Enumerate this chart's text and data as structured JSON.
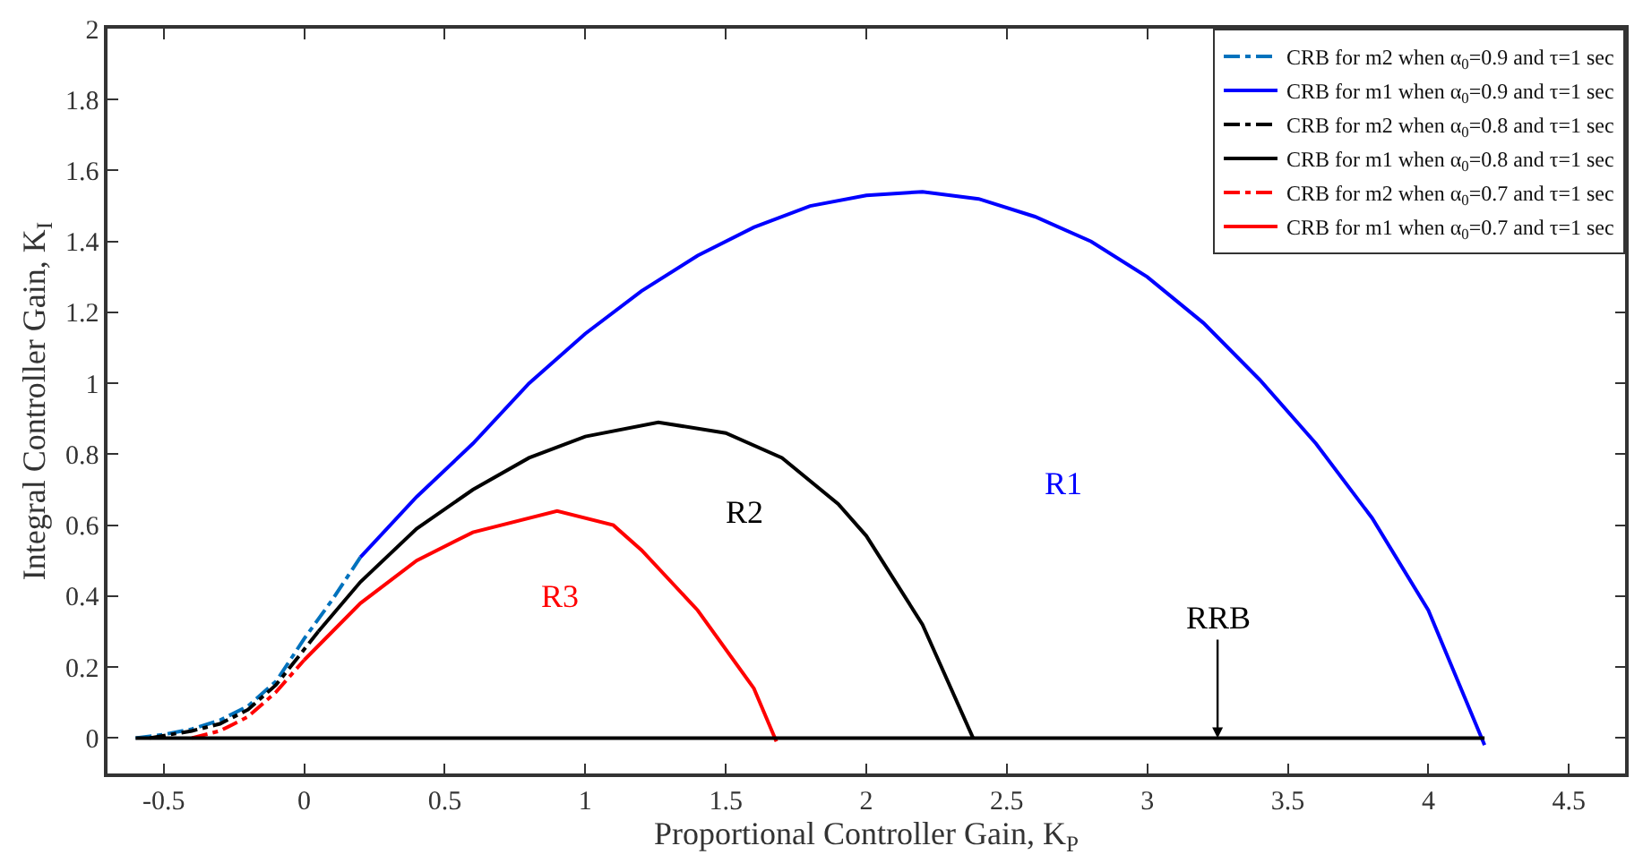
{
  "chart_data": {
    "type": "line",
    "xlabel": "Proportional Controller Gain, K$_{P}$",
    "ylabel": "Integral Controller Gain, K$_{I}$",
    "xlim": [
      -0.7,
      4.7
    ],
    "xticks": [
      -0.5,
      0,
      0.5,
      1,
      1.5,
      2,
      2.5,
      3,
      3.5,
      4,
      4.5
    ],
    "ylim": [
      -0.1,
      2
    ],
    "yticks": [
      0,
      0.2,
      0.4,
      0.6,
      0.8,
      1,
      1.2,
      1.4,
      1.6,
      1.8,
      2
    ],
    "legend": "top right",
    "marker": "none",
    "series": [
      {
        "name": "CRB for m2 when α$_{0}$=0.9 and τ=1 sec",
        "color": "#0072bd",
        "line_style": "dashed",
        "x": [
          -0.6,
          -0.5,
          -0.4,
          -0.3,
          -0.2,
          -0.1,
          0,
          0.1,
          0.2
        ],
        "values": [
          0,
          0.01,
          0.025,
          0.05,
          0.09,
          0.16,
          0.28,
          0.39,
          0.51
        ]
      },
      {
        "name": "CRB for m1 when α$_{0}$=0.9 and τ=1 sec",
        "color": "#0000ff",
        "line_style": "solid",
        "x": [
          0.2,
          0.4,
          0.6,
          0.8,
          1.0,
          1.2,
          1.4,
          1.6,
          1.8,
          2.0,
          2.2,
          2.4,
          2.6,
          2.8,
          3.0,
          3.2,
          3.4,
          3.6,
          3.8,
          4.0,
          4.2
        ],
        "values": [
          0.51,
          0.68,
          0.83,
          1.0,
          1.14,
          1.26,
          1.36,
          1.44,
          1.5,
          1.53,
          1.54,
          1.52,
          1.47,
          1.4,
          1.3,
          1.17,
          1.01,
          0.83,
          0.62,
          0.36,
          -0.02
        ]
      },
      {
        "name": "CRB for m2 when α$_{0}$=0.8 and τ=1 sec",
        "color": "#000000",
        "line_style": "dashed",
        "x": [
          -0.55,
          -0.4,
          -0.3,
          -0.2,
          -0.1,
          0,
          0.05
        ],
        "values": [
          0,
          0.02,
          0.04,
          0.08,
          0.15,
          0.25,
          0.3
        ]
      },
      {
        "name": "CRB for m1 when α$_{0}$=0.8 and τ=1 sec",
        "color": "#000000",
        "line_style": "solid",
        "x": [
          0.05,
          0.2,
          0.4,
          0.6,
          0.8,
          1.0,
          1.26,
          1.5,
          1.7,
          1.9,
          2.0,
          2.2,
          2.38
        ],
        "values": [
          0.3,
          0.44,
          0.59,
          0.7,
          0.79,
          0.85,
          0.89,
          0.86,
          0.79,
          0.66,
          0.57,
          0.32,
          0
        ]
      },
      {
        "name": "CRB for m2 when α$_{0}$=0.7 and τ=1 sec",
        "color": "#ff0000",
        "line_style": "dashed",
        "x": [
          -0.4,
          -0.3,
          -0.2,
          -0.1,
          0
        ],
        "values": [
          0,
          0.02,
          0.06,
          0.13,
          0.22
        ]
      },
      {
        "name": "CRB for m1 when α$_{0}$=0.7 and τ=1 sec",
        "color": "#ff0000",
        "line_style": "solid",
        "x": [
          0,
          0.2,
          0.4,
          0.6,
          0.9,
          1.1,
          1.2,
          1.4,
          1.6,
          1.68
        ],
        "values": [
          0.22,
          0.38,
          0.5,
          0.58,
          0.64,
          0.6,
          0.53,
          0.36,
          0.14,
          -0.01
        ]
      },
      {
        "color": "#000000",
        "line_style": "solid",
        "x": [
          -0.6,
          4.2
        ],
        "values": [
          0,
          0
        ]
      }
    ],
    "annotations": [
      "R1",
      "R2",
      "R3",
      {
        "text": "RRB",
        "x": 3.25,
        "y": 0
      }
    ]
  }
}
